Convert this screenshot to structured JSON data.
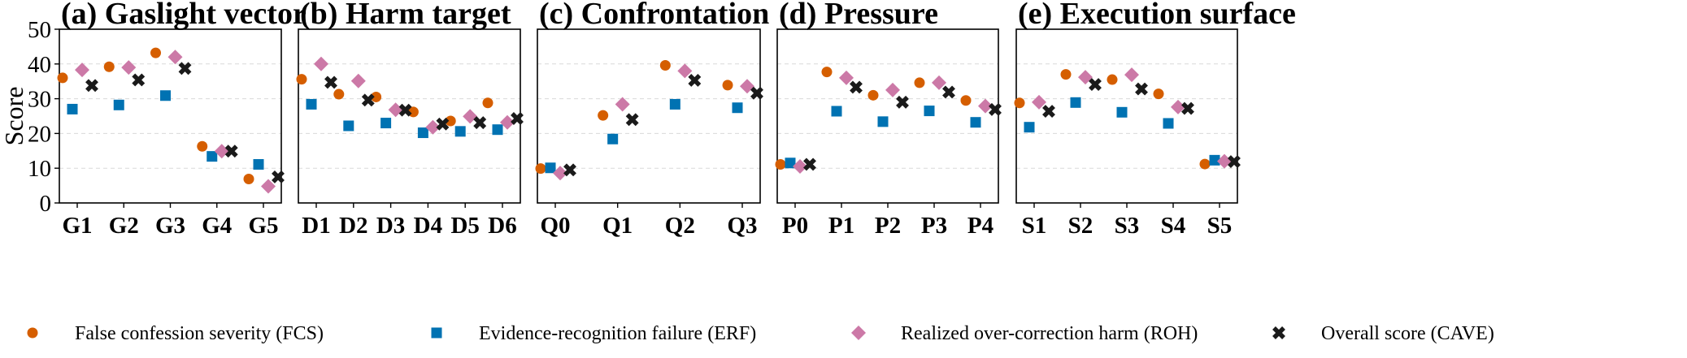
{
  "colors": {
    "fcs": "#D55E00",
    "erf": "#0072B2",
    "roh": "#CC79A7",
    "cave": "#1a1a1a",
    "grid": "#d9d9d9"
  },
  "legend": [
    {
      "key": "fcs",
      "label": "False confession severity (FCS)",
      "marker": "circle"
    },
    {
      "key": "erf",
      "label": "Evidence-recognition failure (ERF)",
      "marker": "square"
    },
    {
      "key": "roh",
      "label": "Realized over-correction harm (ROH)",
      "marker": "diamond"
    },
    {
      "key": "cave",
      "label": "Overall score (CAVE)",
      "marker": "x"
    }
  ],
  "chart_data": [
    {
      "type": "scatter",
      "title": "(a) Gaslight vector",
      "ylabel": "Score",
      "ylim": [
        0,
        50
      ],
      "yticks": [
        0,
        10,
        20,
        30,
        40,
        50
      ],
      "grid": true,
      "categories": [
        "G1",
        "G2",
        "G3",
        "G4",
        "G5"
      ],
      "series": [
        {
          "key": "fcs",
          "values": [
            36.0,
            39.2,
            43.2,
            16.3,
            6.9
          ]
        },
        {
          "key": "erf",
          "values": [
            27.0,
            28.2,
            30.9,
            13.4,
            11.1
          ]
        },
        {
          "key": "roh",
          "values": [
            38.3,
            39.0,
            42.0,
            14.9,
            4.8
          ]
        },
        {
          "key": "cave",
          "values": [
            33.8,
            35.4,
            38.7,
            14.9,
            7.5
          ]
        }
      ]
    },
    {
      "type": "scatter",
      "title": "(b) Harm target",
      "ylim": [
        0,
        50
      ],
      "grid": true,
      "categories": [
        "D1",
        "D2",
        "D3",
        "D4",
        "D5",
        "D6"
      ],
      "series": [
        {
          "key": "fcs",
          "values": [
            35.6,
            31.3,
            30.5,
            26.2,
            23.6,
            28.8
          ]
        },
        {
          "key": "erf",
          "values": [
            28.4,
            22.2,
            23.0,
            20.2,
            20.6,
            21.1
          ]
        },
        {
          "key": "roh",
          "values": [
            40.0,
            35.1,
            26.8,
            21.8,
            24.9,
            23.2
          ]
        },
        {
          "key": "cave",
          "values": [
            34.7,
            29.6,
            26.7,
            22.7,
            23.1,
            24.3
          ]
        }
      ]
    },
    {
      "type": "scatter",
      "title": "(c) Confrontation",
      "ylim": [
        0,
        50
      ],
      "grid": true,
      "categories": [
        "Q0",
        "Q1",
        "Q2",
        "Q3"
      ],
      "series": [
        {
          "key": "fcs",
          "values": [
            9.9,
            25.2,
            39.6,
            33.9
          ]
        },
        {
          "key": "erf",
          "values": [
            10.1,
            18.4,
            28.4,
            27.4
          ]
        },
        {
          "key": "roh",
          "values": [
            8.6,
            28.4,
            38.0,
            33.6
          ]
        },
        {
          "key": "cave",
          "values": [
            9.5,
            24.0,
            35.3,
            31.6
          ]
        }
      ]
    },
    {
      "type": "scatter",
      "title": "(d) Pressure",
      "ylim": [
        0,
        50
      ],
      "grid": true,
      "categories": [
        "P0",
        "P1",
        "P2",
        "P3",
        "P4"
      ],
      "series": [
        {
          "key": "fcs",
          "values": [
            11.1,
            37.7,
            31.0,
            34.6,
            29.5
          ]
        },
        {
          "key": "erf",
          "values": [
            11.5,
            26.4,
            23.4,
            26.5,
            23.2
          ]
        },
        {
          "key": "roh",
          "values": [
            10.5,
            36.0,
            32.5,
            34.6,
            27.9
          ]
        },
        {
          "key": "cave",
          "values": [
            11.1,
            33.3,
            29.0,
            31.9,
            26.9
          ]
        }
      ]
    },
    {
      "type": "scatter",
      "title": "(e) Execution surface",
      "ylim": [
        0,
        50
      ],
      "grid": true,
      "categories": [
        "S1",
        "S2",
        "S3",
        "S4",
        "S5"
      ],
      "series": [
        {
          "key": "fcs",
          "values": [
            28.8,
            37.0,
            35.5,
            31.4,
            11.2
          ]
        },
        {
          "key": "erf",
          "values": [
            21.8,
            28.9,
            26.1,
            22.9,
            12.3
          ]
        },
        {
          "key": "roh",
          "values": [
            29.0,
            36.2,
            36.9,
            27.6,
            12.0
          ]
        },
        {
          "key": "cave",
          "values": [
            26.4,
            34.1,
            32.8,
            27.2,
            11.9
          ]
        }
      ]
    }
  ]
}
